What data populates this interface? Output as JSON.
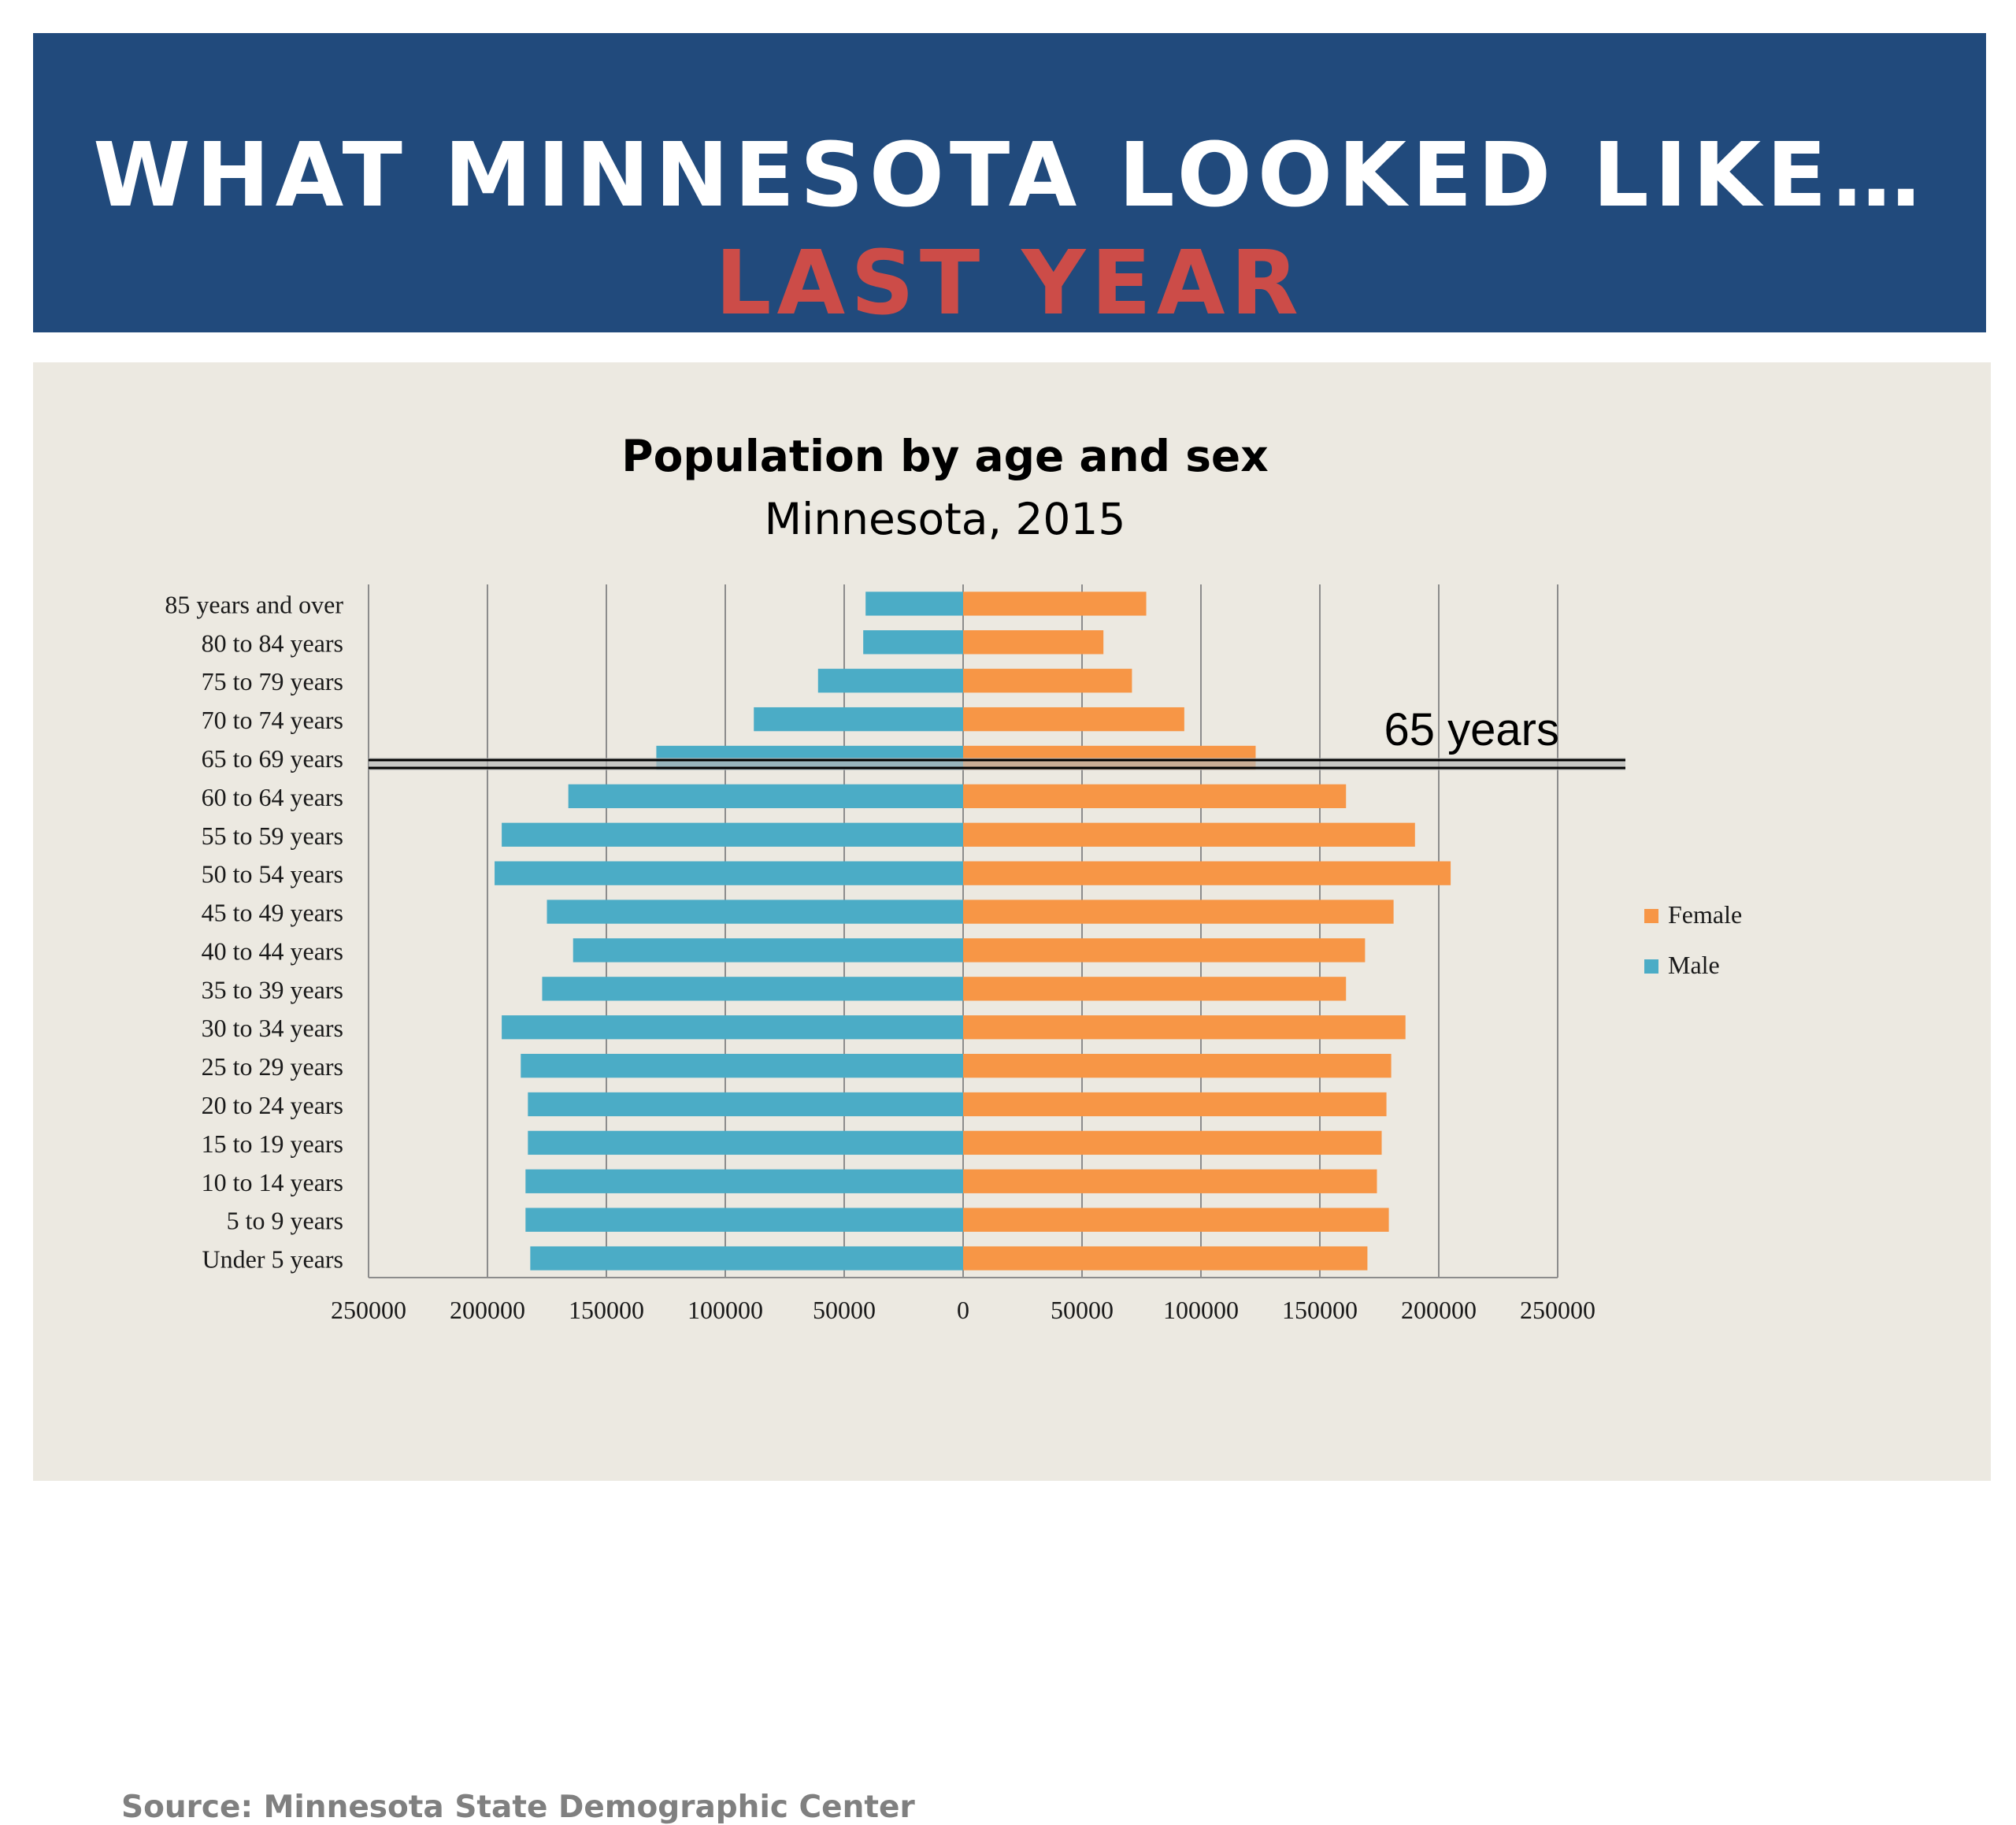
{
  "header": {
    "title": "WHAT MINNESOTA LOOKED LIKE…",
    "subtitle": "LAST YEAR"
  },
  "chart_data": {
    "type": "bar",
    "orientation": "horizontal",
    "subtype": "population-pyramid",
    "title": "Population by age and sex",
    "subtitle": "Minnesota, 2015",
    "categories": [
      "Under 5 years",
      "5 to 9 years",
      "10 to 14 years",
      "15 to 19 years",
      "20 to 24 years",
      "25 to 29 years",
      "30 to 34 years",
      "35 to 39 years",
      "40 to 44 years",
      "45 to 49 years",
      "50 to 54 years",
      "55 to 59 years",
      "60 to 64 years",
      "65 to 69 years",
      "70 to 74 years",
      "75 to 79 years",
      "80 to 84 years",
      "85 years and over"
    ],
    "series": [
      {
        "name": "Female",
        "color": "#f79646",
        "values": [
          170000,
          179000,
          174000,
          176000,
          178000,
          180000,
          186000,
          161000,
          169000,
          181000,
          205000,
          190000,
          161000,
          123000,
          93000,
          71000,
          59000,
          77000
        ]
      },
      {
        "name": "Male",
        "color": "#4bacc6",
        "values": [
          182000,
          184000,
          184000,
          183000,
          183000,
          186000,
          194000,
          177000,
          164000,
          175000,
          197000,
          194000,
          166000,
          129000,
          88000,
          61000,
          42000,
          41000
        ]
      }
    ],
    "xlim": [
      -250000,
      250000
    ],
    "xticks": [
      "250000",
      "200000",
      "150000",
      "100000",
      "50000",
      "0",
      "50000",
      "100000",
      "150000",
      "200000",
      "250000"
    ],
    "grid": true,
    "legend": "right",
    "annotation": {
      "label": "65 years",
      "category": "65 to 69 years"
    }
  },
  "footer": {
    "source": "Source: Minnesota State Demographic Center"
  }
}
